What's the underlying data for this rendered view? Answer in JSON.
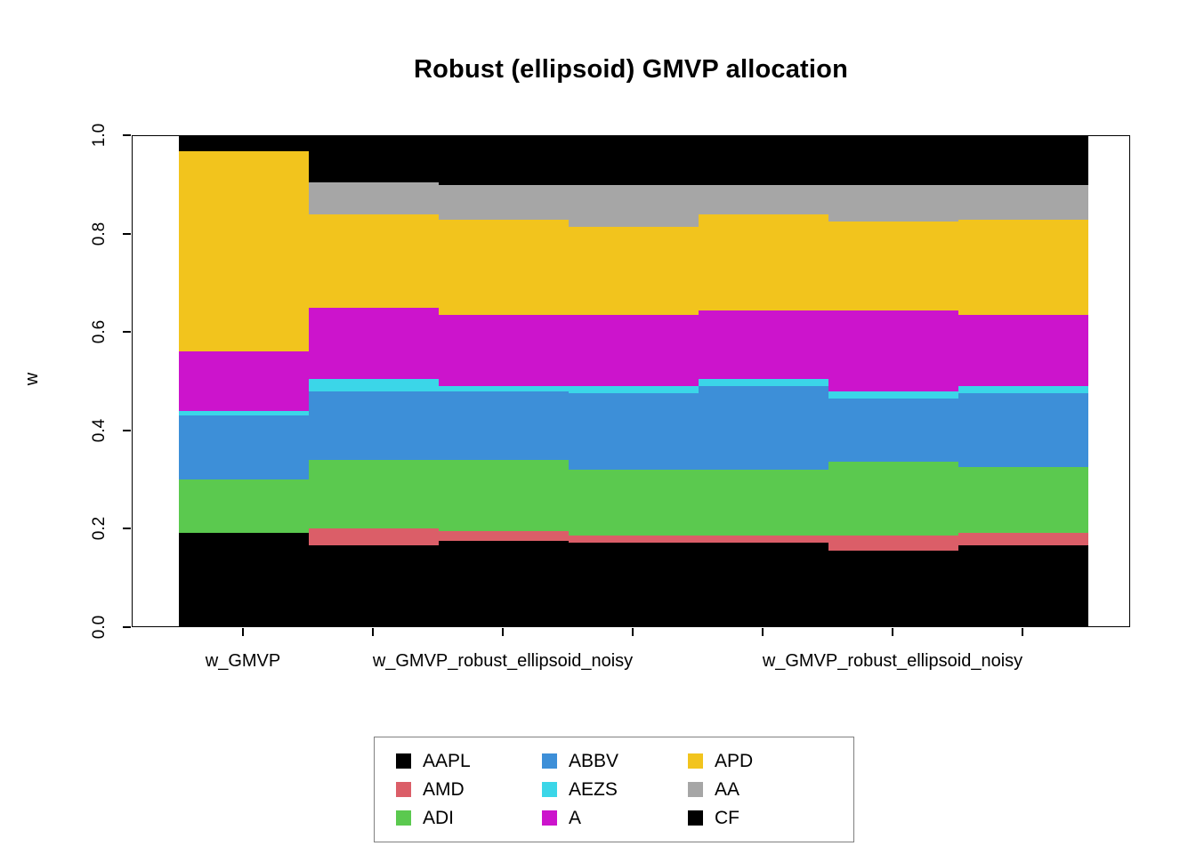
{
  "chart_data": {
    "type": "bar",
    "stacked": true,
    "title": "Robust (ellipsoid) GMVP allocation",
    "ylabel": "w",
    "ylim": [
      0,
      1
    ],
    "grid": false,
    "y_ticks": [
      "0.0",
      "0.2",
      "0.4",
      "0.6",
      "0.8",
      "1.0"
    ],
    "categories": [
      "w_GMVP",
      "w_GMVP_robust_ellipsoid_noisy",
      "w_GMVP_robust_ellipsoid_noisy",
      "w_GMVP_robust_ellipsoid_noisy",
      "w_GMVP_robust_ellipsoid_noisy",
      "w_GMVP_robust_ellipsoid_noisy",
      "w_GMVP_robust_ellipsoid_noisy"
    ],
    "x_tick_labels": [
      "w_GMVP",
      "",
      "w_GMVP_robust_ellipsoid_noisy",
      "",
      "",
      "w_GMVP_robust_ellipsoid_noisy",
      ""
    ],
    "series": [
      {
        "name": "AAPL",
        "color": "#000000",
        "values": [
          0.19,
          0.165,
          0.175,
          0.17,
          0.17,
          0.155,
          0.165
        ]
      },
      {
        "name": "AMD",
        "color": "#DB5E68",
        "values": [
          0.0,
          0.035,
          0.02,
          0.015,
          0.015,
          0.03,
          0.025
        ]
      },
      {
        "name": "ADI",
        "color": "#5BC94F",
        "values": [
          0.11,
          0.14,
          0.145,
          0.135,
          0.135,
          0.15,
          0.135
        ]
      },
      {
        "name": "ABBV",
        "color": "#3D8FD8",
        "values": [
          0.13,
          0.14,
          0.14,
          0.155,
          0.17,
          0.13,
          0.15
        ]
      },
      {
        "name": "AEZS",
        "color": "#3BD6E8",
        "values": [
          0.01,
          0.025,
          0.01,
          0.015,
          0.015,
          0.015,
          0.015
        ]
      },
      {
        "name": "A",
        "color": "#CC14CC",
        "values": [
          0.12,
          0.145,
          0.145,
          0.145,
          0.14,
          0.165,
          0.145
        ]
      },
      {
        "name": "APD",
        "color": "#F2C41D",
        "values": [
          0.41,
          0.19,
          0.195,
          0.18,
          0.195,
          0.18,
          0.195
        ]
      },
      {
        "name": "AA",
        "color": "#A6A6A6",
        "values": [
          0.0,
          0.065,
          0.07,
          0.085,
          0.06,
          0.075,
          0.07
        ]
      },
      {
        "name": "CF",
        "color": "#000000",
        "values": [
          0.03,
          0.095,
          0.1,
          0.1,
          0.1,
          0.1,
          0.1
        ]
      }
    ],
    "legend": {
      "position": "bottom-center",
      "columns": [
        [
          "AAPL",
          "AMD",
          "ADI"
        ],
        [
          "ABBV",
          "AEZS",
          "A"
        ],
        [
          "APD",
          "AA",
          "CF"
        ]
      ]
    }
  }
}
